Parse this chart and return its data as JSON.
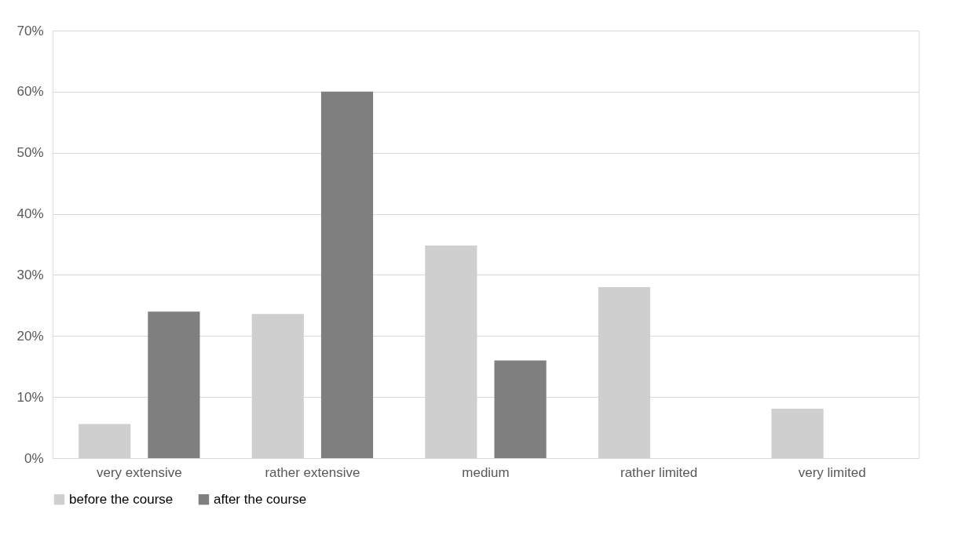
{
  "chart_data": {
    "type": "bar",
    "categories": [
      "very extensive",
      "rather extensive",
      "medium",
      "rather limited",
      "very limited"
    ],
    "series": [
      {
        "name": "before the course",
        "color": "#cfcfcf",
        "values": [
          5.6,
          23.6,
          34.8,
          28,
          8.1
        ]
      },
      {
        "name": "after the course",
        "color": "#7f7f7f",
        "values": [
          24,
          60,
          16,
          0,
          0
        ]
      }
    ],
    "ylim": [
      0,
      70
    ],
    "yticks": [
      {
        "value": 0,
        "label": "0%"
      },
      {
        "value": 10,
        "label": "10%"
      },
      {
        "value": 20,
        "label": "20%"
      },
      {
        "value": 30,
        "label": "30%"
      },
      {
        "value": 40,
        "label": "40%"
      },
      {
        "value": 50,
        "label": "50%"
      },
      {
        "value": 60,
        "label": "60%"
      },
      {
        "value": 70,
        "label": "70%"
      }
    ],
    "grid": "y",
    "legend": "bottom"
  }
}
